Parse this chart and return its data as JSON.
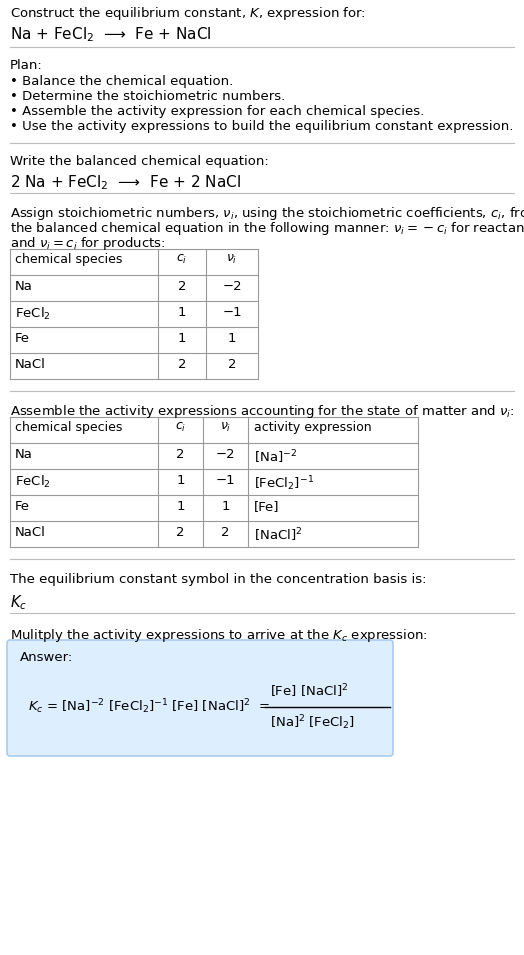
{
  "title_line1": "Construct the equilibrium constant, $K$, expression for:",
  "title_line2": "Na + FeCl$_2$  ⟶  Fe + NaCl",
  "plan_header": "Plan:",
  "plan_bullets": [
    "• Balance the chemical equation.",
    "• Determine the stoichiometric numbers.",
    "• Assemble the activity expression for each chemical species.",
    "• Use the activity expressions to build the equilibrium constant expression."
  ],
  "balanced_header": "Write the balanced chemical equation:",
  "balanced_eq": "2 Na + FeCl$_2$  ⟶  Fe + 2 NaCl",
  "stoich_intro1": "Assign stoichiometric numbers, $\\nu_i$, using the stoichiometric coefficients, $c_i$, from",
  "stoich_intro2": "the balanced chemical equation in the following manner: $\\nu_i = -c_i$ for reactants",
  "stoich_intro3": "and $\\nu_i = c_i$ for products:",
  "table1_headers": [
    "chemical species",
    "$c_i$",
    "$\\nu_i$"
  ],
  "table1_rows": [
    [
      "Na",
      "2",
      "−2"
    ],
    [
      "FeCl$_2$",
      "1",
      "−1"
    ],
    [
      "Fe",
      "1",
      "1"
    ],
    [
      "NaCl",
      "2",
      "2"
    ]
  ],
  "activity_intro": "Assemble the activity expressions accounting for the state of matter and $\\nu_i$:",
  "table2_headers": [
    "chemical species",
    "$c_i$",
    "$\\nu_i$",
    "activity expression"
  ],
  "table2_rows": [
    [
      "Na",
      "2",
      "−2",
      "[Na]$^{-2}$"
    ],
    [
      "FeCl$_2$",
      "1",
      "−1",
      "[FeCl$_2$]$^{-1}$"
    ],
    [
      "Fe",
      "1",
      "1",
      "[Fe]"
    ],
    [
      "NaCl",
      "2",
      "2",
      "[NaCl]$^2$"
    ]
  ],
  "kc_text": "The equilibrium constant symbol in the concentration basis is:",
  "kc_symbol": "$K_c$",
  "multiply_text": "Mulitply the activity expressions to arrive at the $K_c$ expression:",
  "answer_label": "Answer:",
  "answer_box_color": "#ddeeff",
  "answer_box_edge": "#aaccee",
  "bg_color": "#ffffff",
  "text_color": "#000000",
  "table_line_color": "#999999",
  "separator_color": "#bbbbbb",
  "font_size": 9.5,
  "fig_width": 5.24,
  "fig_height": 9.55
}
